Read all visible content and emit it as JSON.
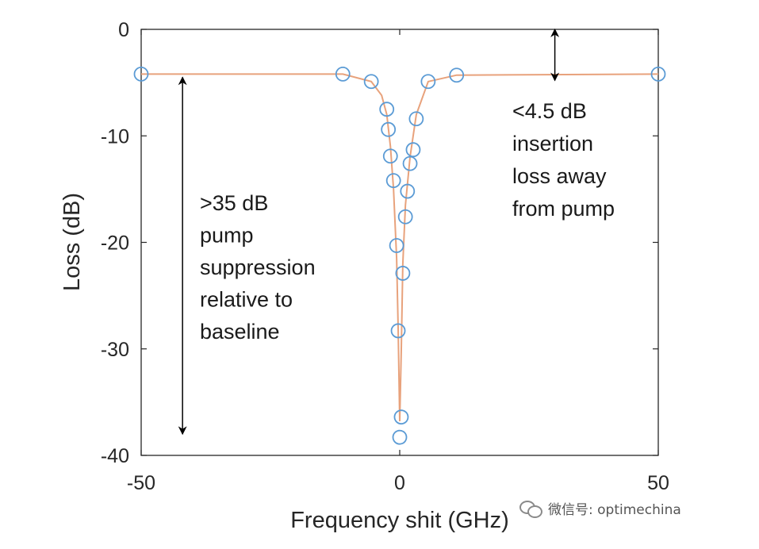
{
  "chart_data": {
    "type": "line",
    "xlabel": "Frequency shit (GHz)",
    "ylabel": "Loss (dB)",
    "xlim": [
      -50,
      50
    ],
    "ylim": [
      -40,
      0
    ],
    "xticks": [
      -50,
      0,
      50
    ],
    "yticks": [
      0,
      -10,
      -20,
      -30,
      -40
    ],
    "grid": false,
    "legend": "none",
    "series": [
      {
        "marker": "circle-open",
        "color": "#5b9bd5",
        "points": [
          {
            "x": -50,
            "y": -4.2
          },
          {
            "x": -11,
            "y": -4.2
          },
          {
            "x": -5.5,
            "y": -4.9
          },
          {
            "x": -2.5,
            "y": -7.5
          },
          {
            "x": -2.2,
            "y": -9.4
          },
          {
            "x": -1.8,
            "y": -11.9
          },
          {
            "x": -1.2,
            "y": -14.2
          },
          {
            "x": -0.6,
            "y": -20.3
          },
          {
            "x": -0.3,
            "y": -28.3
          },
          {
            "x": 0,
            "y": -38.3
          },
          {
            "x": 0.3,
            "y": -36.4
          },
          {
            "x": 0.6,
            "y": -22.9
          },
          {
            "x": 1.1,
            "y": -17.6
          },
          {
            "x": 1.5,
            "y": -15.2
          },
          {
            "x": 2.0,
            "y": -12.6
          },
          {
            "x": 2.6,
            "y": -11.3
          },
          {
            "x": 3.2,
            "y": -8.4
          },
          {
            "x": 5.5,
            "y": -4.9
          },
          {
            "x": 11,
            "y": -4.3
          },
          {
            "x": 50,
            "y": -4.2
          }
        ]
      },
      {
        "line": "solid",
        "color": "#e8a27c",
        "points": [
          {
            "x": -50,
            "y": -4.2
          },
          {
            "x": -11,
            "y": -4.2
          },
          {
            "x": -5.5,
            "y": -4.9
          },
          {
            "x": -3.5,
            "y": -6.2
          },
          {
            "x": -2.5,
            "y": -8.0
          },
          {
            "x": -1.8,
            "y": -11.0
          },
          {
            "x": -1.2,
            "y": -15.0
          },
          {
            "x": -0.6,
            "y": -21.5
          },
          {
            "x": -0.3,
            "y": -28.0
          },
          {
            "x": 0,
            "y": -36.8
          },
          {
            "x": 0.3,
            "y": -30.0
          },
          {
            "x": 0.6,
            "y": -22.0
          },
          {
            "x": 1.1,
            "y": -16.5
          },
          {
            "x": 2.0,
            "y": -12.0
          },
          {
            "x": 3.2,
            "y": -8.0
          },
          {
            "x": 5.5,
            "y": -4.9
          },
          {
            "x": 11,
            "y": -4.3
          },
          {
            "x": 50,
            "y": -4.2
          }
        ]
      }
    ],
    "annotations": [
      {
        "lines": [
          ">35 dB",
          "pump",
          "suppression",
          "relative to",
          "baseline"
        ],
        "arrow": {
          "x": -42,
          "y_from": -4.2,
          "y_to": -38.3
        }
      },
      {
        "lines": [
          "<4.5 dB",
          "insertion",
          "loss away",
          "from pump"
        ],
        "arrow": {
          "x": 30,
          "y_from": 0,
          "y_to": -4.5
        }
      }
    ]
  },
  "watermark": {
    "text": "微信号: optimechina",
    "icon": "wechat-icon"
  }
}
